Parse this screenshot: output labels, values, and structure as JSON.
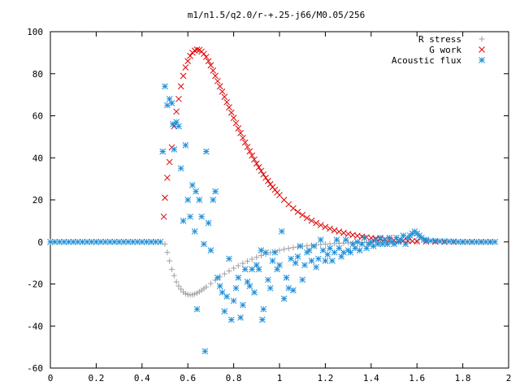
{
  "chart_data": {
    "type": "scatter",
    "title": "m1/n1.5/q2.0/r-+.25-j66/M0.05/256",
    "xlabel": "",
    "ylabel": "",
    "xlim": [
      0,
      2
    ],
    "ylim": [
      -60,
      100
    ],
    "xticks": [
      0,
      0.2,
      0.4,
      0.6,
      0.8,
      1,
      1.2,
      1.4,
      1.6,
      1.8,
      2
    ],
    "xtick_labels": [
      "0",
      "0.2",
      "0.4",
      "0.6",
      "0.8",
      "1",
      "1.2",
      "1.4",
      "1.6",
      "1.8",
      "2"
    ],
    "yticks": [
      -60,
      -40,
      -20,
      0,
      20,
      40,
      60,
      80,
      100
    ],
    "ytick_labels": [
      "-60",
      "-40",
      "-20",
      "0",
      "20",
      "40",
      "60",
      "80",
      "100"
    ],
    "grid": false,
    "legend": "top-right",
    "series": [
      {
        "name": "R stress",
        "marker": "plus",
        "color": "#a0a0a0",
        "points": [
          [
            0.5,
            -1
          ],
          [
            0.51,
            -5
          ],
          [
            0.52,
            -9
          ],
          [
            0.53,
            -13
          ],
          [
            0.54,
            -16
          ],
          [
            0.55,
            -19
          ],
          [
            0.56,
            -21
          ],
          [
            0.57,
            -22.5
          ],
          [
            0.58,
            -23.8
          ],
          [
            0.59,
            -24.6
          ],
          [
            0.6,
            -25
          ],
          [
            0.61,
            -25.2
          ],
          [
            0.62,
            -25.1
          ],
          [
            0.63,
            -24.8
          ],
          [
            0.64,
            -24.3
          ],
          [
            0.65,
            -23.7
          ],
          [
            0.66,
            -23
          ],
          [
            0.67,
            -22.2
          ],
          [
            0.68,
            -21.4
          ],
          [
            0.7,
            -19.8
          ],
          [
            0.72,
            -18.2
          ],
          [
            0.74,
            -16.6
          ],
          [
            0.76,
            -15.2
          ],
          [
            0.78,
            -13.8
          ],
          [
            0.8,
            -12.5
          ],
          [
            0.82,
            -11.3
          ],
          [
            0.84,
            -10.2
          ],
          [
            0.86,
            -9.2
          ],
          [
            0.88,
            -8.2
          ],
          [
            0.9,
            -7.3
          ],
          [
            0.92,
            -6.5
          ],
          [
            0.94,
            -5.8
          ],
          [
            0.96,
            -5.1
          ],
          [
            0.98,
            -4.5
          ],
          [
            1.0,
            -4
          ],
          [
            1.02,
            -3.5
          ],
          [
            1.04,
            -3.1
          ],
          [
            1.06,
            -2.7
          ],
          [
            1.08,
            -2.4
          ],
          [
            1.1,
            -2.1
          ],
          [
            1.12,
            -1.8
          ],
          [
            1.14,
            -1.6
          ],
          [
            1.16,
            -1.4
          ],
          [
            1.18,
            -1.2
          ],
          [
            1.2,
            -1.0
          ],
          [
            1.22,
            -0.9
          ],
          [
            1.24,
            -0.8
          ],
          [
            1.26,
            -0.7
          ],
          [
            1.28,
            -0.6
          ],
          [
            1.3,
            -0.5
          ],
          [
            1.32,
            -0.4
          ],
          [
            1.34,
            -0.35
          ],
          [
            1.36,
            -0.3
          ],
          [
            1.38,
            -0.25
          ],
          [
            1.4,
            -0.2
          ],
          [
            1.42,
            -0.15
          ],
          [
            1.44,
            -0.1
          ],
          [
            1.46,
            -0.08
          ],
          [
            1.48,
            -0.05
          ],
          [
            1.5,
            -0.03
          ],
          [
            1.52,
            0
          ],
          [
            1.56,
            0
          ],
          [
            1.6,
            0
          ],
          [
            1.64,
            0
          ],
          [
            1.68,
            0
          ],
          [
            1.72,
            0
          ],
          [
            1.76,
            0
          ],
          [
            1.8,
            0
          ],
          [
            1.84,
            0
          ],
          [
            1.88,
            0
          ],
          [
            1.92,
            0
          ]
        ]
      },
      {
        "name": "G work",
        "marker": "cross",
        "color": "#e00000",
        "points": [
          [
            0.495,
            12
          ],
          [
            0.5,
            21
          ],
          [
            0.51,
            30.5
          ],
          [
            0.52,
            38
          ],
          [
            0.53,
            45
          ],
          [
            0.54,
            55
          ],
          [
            0.55,
            62
          ],
          [
            0.56,
            68
          ],
          [
            0.57,
            74
          ],
          [
            0.58,
            79
          ],
          [
            0.59,
            83
          ],
          [
            0.6,
            86
          ],
          [
            0.61,
            88.5
          ],
          [
            0.62,
            90
          ],
          [
            0.63,
            91
          ],
          [
            0.64,
            91.5
          ],
          [
            0.65,
            91.3
          ],
          [
            0.66,
            90.5
          ],
          [
            0.67,
            89.5
          ],
          [
            0.68,
            88
          ],
          [
            0.69,
            86
          ],
          [
            0.7,
            84
          ],
          [
            0.71,
            81.5
          ],
          [
            0.72,
            79
          ],
          [
            0.73,
            76.5
          ],
          [
            0.74,
            74
          ],
          [
            0.75,
            71.5
          ],
          [
            0.76,
            69
          ],
          [
            0.77,
            66.5
          ],
          [
            0.78,
            64
          ],
          [
            0.79,
            61.5
          ],
          [
            0.8,
            59
          ],
          [
            0.81,
            56.5
          ],
          [
            0.82,
            54
          ],
          [
            0.83,
            51.8
          ],
          [
            0.84,
            49.5
          ],
          [
            0.85,
            47.3
          ],
          [
            0.86,
            45.2
          ],
          [
            0.87,
            43.1
          ],
          [
            0.88,
            41.1
          ],
          [
            0.89,
            39.2
          ],
          [
            0.9,
            37.3
          ],
          [
            0.91,
            35.5
          ],
          [
            0.92,
            33.8
          ],
          [
            0.93,
            32.1
          ],
          [
            0.94,
            30.5
          ],
          [
            0.95,
            29
          ],
          [
            0.96,
            27.5
          ],
          [
            0.97,
            26.1
          ],
          [
            0.98,
            24.8
          ],
          [
            0.99,
            23.5
          ],
          [
            1.0,
            22.3
          ],
          [
            1.02,
            20
          ],
          [
            1.04,
            17.9
          ],
          [
            1.06,
            16
          ],
          [
            1.08,
            14.3
          ],
          [
            1.1,
            12.8
          ],
          [
            1.12,
            11.4
          ],
          [
            1.14,
            10.1
          ],
          [
            1.16,
            9
          ],
          [
            1.18,
            8
          ],
          [
            1.2,
            7.1
          ],
          [
            1.22,
            6.3
          ],
          [
            1.24,
            5.5
          ],
          [
            1.26,
            4.9
          ],
          [
            1.28,
            4.3
          ],
          [
            1.3,
            3.8
          ],
          [
            1.32,
            3.3
          ],
          [
            1.34,
            2.9
          ],
          [
            1.36,
            2.5
          ],
          [
            1.38,
            2.2
          ],
          [
            1.4,
            1.9
          ],
          [
            1.42,
            1.6
          ],
          [
            1.44,
            1.4
          ],
          [
            1.46,
            1.2
          ],
          [
            1.48,
            1
          ],
          [
            1.5,
            0.8
          ],
          [
            1.52,
            0.7
          ],
          [
            1.54,
            0.6
          ],
          [
            1.56,
            0.5
          ],
          [
            1.58,
            0.4
          ],
          [
            1.6,
            0.3
          ],
          [
            1.64,
            0.2
          ],
          [
            1.68,
            0.1
          ],
          [
            1.72,
            0
          ],
          [
            1.76,
            0
          ],
          [
            1.8,
            0
          ],
          [
            1.84,
            0
          ],
          [
            1.88,
            0
          ],
          [
            1.92,
            0
          ]
        ]
      },
      {
        "name": "Acoustic flux",
        "marker": "star",
        "color": "#1f8fd8",
        "points": [
          [
            0.0,
            0
          ],
          [
            0.02,
            0
          ],
          [
            0.04,
            0
          ],
          [
            0.06,
            0
          ],
          [
            0.08,
            0
          ],
          [
            0.1,
            0
          ],
          [
            0.12,
            0
          ],
          [
            0.14,
            0
          ],
          [
            0.16,
            0
          ],
          [
            0.18,
            0
          ],
          [
            0.2,
            0
          ],
          [
            0.22,
            0
          ],
          [
            0.24,
            0
          ],
          [
            0.26,
            0
          ],
          [
            0.28,
            0
          ],
          [
            0.3,
            0
          ],
          [
            0.32,
            0
          ],
          [
            0.34,
            0
          ],
          [
            0.36,
            0
          ],
          [
            0.38,
            0
          ],
          [
            0.4,
            0
          ],
          [
            0.42,
            0
          ],
          [
            0.44,
            0
          ],
          [
            0.46,
            0
          ],
          [
            0.48,
            0
          ],
          [
            0.49,
            43
          ],
          [
            0.5,
            74
          ],
          [
            0.51,
            65
          ],
          [
            0.52,
            68
          ],
          [
            0.53,
            66
          ],
          [
            0.535,
            56
          ],
          [
            0.54,
            44
          ],
          [
            0.55,
            57
          ],
          [
            0.56,
            55
          ],
          [
            0.57,
            35
          ],
          [
            0.58,
            10
          ],
          [
            0.59,
            46
          ],
          [
            0.6,
            20
          ],
          [
            0.61,
            12
          ],
          [
            0.62,
            27
          ],
          [
            0.63,
            5
          ],
          [
            0.635,
            24
          ],
          [
            0.64,
            -32
          ],
          [
            0.65,
            20
          ],
          [
            0.66,
            12
          ],
          [
            0.67,
            -1
          ],
          [
            0.675,
            -52
          ],
          [
            0.68,
            43
          ],
          [
            0.69,
            9
          ],
          [
            0.7,
            -4
          ],
          [
            0.71,
            20
          ],
          [
            0.72,
            24
          ],
          [
            0.73,
            -17
          ],
          [
            0.74,
            -21
          ],
          [
            0.75,
            -24
          ],
          [
            0.76,
            -33
          ],
          [
            0.77,
            -26
          ],
          [
            0.78,
            -8
          ],
          [
            0.79,
            -37
          ],
          [
            0.8,
            -28
          ],
          [
            0.81,
            -22
          ],
          [
            0.82,
            -17
          ],
          [
            0.83,
            -36
          ],
          [
            0.84,
            -30
          ],
          [
            0.85,
            -13
          ],
          [
            0.86,
            -19
          ],
          [
            0.87,
            -21
          ],
          [
            0.88,
            -13
          ],
          [
            0.89,
            -24
          ],
          [
            0.9,
            -11
          ],
          [
            0.91,
            -13
          ],
          [
            0.92,
            -4
          ],
          [
            0.925,
            -37
          ],
          [
            0.93,
            -32
          ],
          [
            0.94,
            -5
          ],
          [
            0.95,
            -18
          ],
          [
            0.96,
            -22
          ],
          [
            0.97,
            -9
          ],
          [
            0.98,
            -5
          ],
          [
            0.99,
            -13
          ],
          [
            1.0,
            -11
          ],
          [
            1.01,
            5
          ],
          [
            1.02,
            -27
          ],
          [
            1.03,
            -17
          ],
          [
            1.04,
            -22
          ],
          [
            1.05,
            -8
          ],
          [
            1.06,
            -23
          ],
          [
            1.07,
            -10
          ],
          [
            1.08,
            -7
          ],
          [
            1.09,
            -2
          ],
          [
            1.1,
            -18
          ],
          [
            1.11,
            -11
          ],
          [
            1.12,
            -5
          ],
          [
            1.13,
            -4
          ],
          [
            1.14,
            -9
          ],
          [
            1.15,
            -2
          ],
          [
            1.16,
            -12
          ],
          [
            1.17,
            -8
          ],
          [
            1.18,
            1
          ],
          [
            1.19,
            -4
          ],
          [
            1.2,
            -9
          ],
          [
            1.21,
            -6
          ],
          [
            1.22,
            -3
          ],
          [
            1.23,
            -9
          ],
          [
            1.24,
            -5
          ],
          [
            1.25,
            1
          ],
          [
            1.26,
            -3
          ],
          [
            1.27,
            -7
          ],
          [
            1.28,
            -5
          ],
          [
            1.29,
            1
          ],
          [
            1.3,
            -4
          ],
          [
            1.31,
            -5
          ],
          [
            1.32,
            -1
          ],
          [
            1.33,
            -3
          ],
          [
            1.34,
            0
          ],
          [
            1.35,
            -4
          ],
          [
            1.36,
            -1
          ],
          [
            1.37,
            2
          ],
          [
            1.38,
            -3
          ],
          [
            1.39,
            -1
          ],
          [
            1.4,
            0
          ],
          [
            1.41,
            -2
          ],
          [
            1.42,
            1
          ],
          [
            1.43,
            -1
          ],
          [
            1.44,
            2
          ],
          [
            1.45,
            -1
          ],
          [
            1.46,
            1
          ],
          [
            1.47,
            -1
          ],
          [
            1.48,
            2
          ],
          [
            1.49,
            0
          ],
          [
            1.5,
            -1
          ],
          [
            1.51,
            2
          ],
          [
            1.52,
            0
          ],
          [
            1.53,
            1
          ],
          [
            1.54,
            3
          ],
          [
            1.55,
            -1
          ],
          [
            1.56,
            2
          ],
          [
            1.57,
            3
          ],
          [
            1.58,
            4
          ],
          [
            1.59,
            5
          ],
          [
            1.6,
            4
          ],
          [
            1.61,
            3
          ],
          [
            1.62,
            2
          ],
          [
            1.63,
            1
          ],
          [
            1.64,
            1
          ],
          [
            1.66,
            0.5
          ],
          [
            1.68,
            0.5
          ],
          [
            1.7,
            0.3
          ],
          [
            1.72,
            0.3
          ],
          [
            1.74,
            0.2
          ],
          [
            1.76,
            0.2
          ],
          [
            1.78,
            0
          ],
          [
            1.8,
            0
          ],
          [
            1.82,
            0
          ],
          [
            1.84,
            0
          ],
          [
            1.86,
            0
          ],
          [
            1.88,
            0
          ],
          [
            1.9,
            0
          ],
          [
            1.92,
            0
          ],
          [
            1.94,
            0
          ]
        ]
      }
    ]
  }
}
